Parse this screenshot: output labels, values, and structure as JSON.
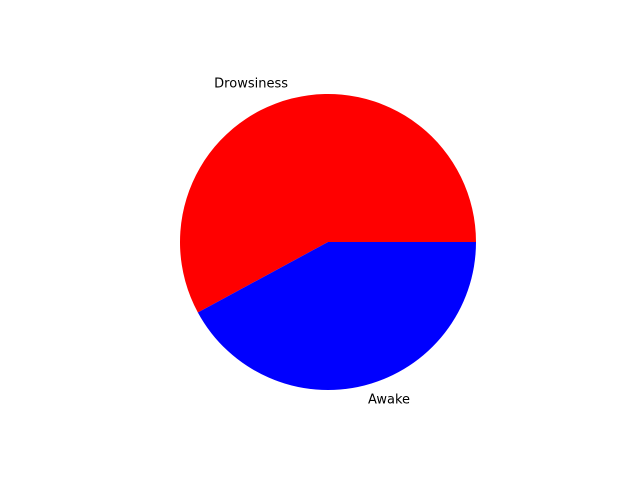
{
  "chart_data": {
    "type": "pie",
    "categories": [
      "Drowsiness",
      "Awake"
    ],
    "values": [
      57.9,
      42.1
    ],
    "colors": [
      "#ff0000",
      "#0000ff"
    ],
    "start_angle_deg": 0,
    "direction": "counterclockwise",
    "legend": "none"
  }
}
